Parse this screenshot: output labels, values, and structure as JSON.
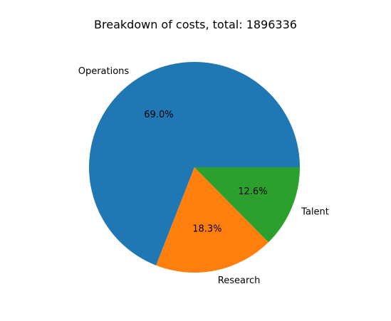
{
  "chart_data": {
    "type": "pie",
    "title": "Breakdown of costs, total: 1896336",
    "categories": [
      "Operations",
      "Research",
      "Talent"
    ],
    "values": [
      69.0,
      18.3,
      12.6
    ],
    "value_labels": [
      "69.0%",
      "18.3%",
      "12.6%"
    ],
    "colors": [
      "#1f77b4",
      "#ff7f0e",
      "#2ca02c"
    ],
    "start_angle_deg": 0,
    "direction": "counterclockwise"
  }
}
